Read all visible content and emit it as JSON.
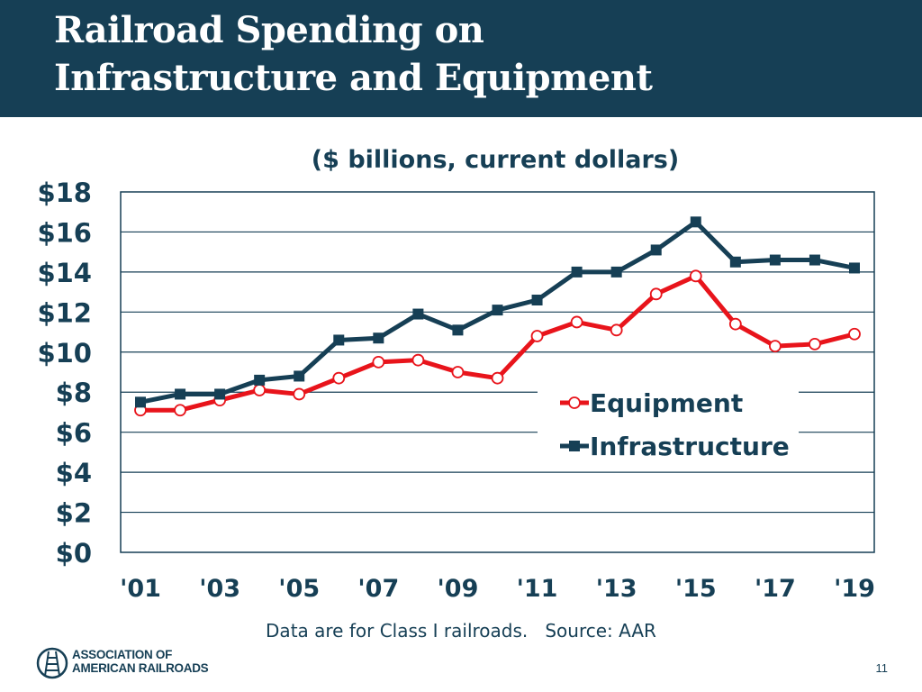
{
  "slide": {
    "title_line1": "Railroad Spending on",
    "title_line2": "Infrastructure and Equipment",
    "footnote": "Data are for Class I railroads.   Source: AAR",
    "page_number": "11",
    "logo": {
      "line1": "ASSOCIATION OF",
      "line2": "AMERICAN RAILROADS",
      "icon": "railroad-track-icon"
    }
  },
  "colors": {
    "header": "#163f55",
    "equipment": "#e8141b",
    "infrastructure": "#163f55"
  },
  "chart_data": {
    "type": "line",
    "subtitle": "($ billions, current dollars)",
    "x": [
      2001,
      2002,
      2003,
      2004,
      2005,
      2006,
      2007,
      2008,
      2009,
      2010,
      2011,
      2012,
      2013,
      2014,
      2015,
      2016,
      2017,
      2018,
      2019
    ],
    "ylim": [
      0,
      18
    ],
    "y_ticks": [
      0,
      2,
      4,
      6,
      8,
      10,
      12,
      14,
      16,
      18
    ],
    "y_tick_labels": [
      "$0",
      "$2",
      "$4",
      "$6",
      "$8",
      "$10",
      "$12",
      "$14",
      "$16",
      "$18"
    ],
    "x_ticks": [
      2001,
      2003,
      2005,
      2007,
      2009,
      2011,
      2013,
      2015,
      2017,
      2019
    ],
    "x_tick_labels": [
      "'01",
      "'03",
      "'05",
      "'07",
      "'09",
      "'11",
      "'13",
      "'15",
      "'17",
      "'19"
    ],
    "grid": true,
    "legend_position": "center-right",
    "series": [
      {
        "name": "Equipment",
        "marker": "circle",
        "values": [
          7.1,
          7.1,
          7.6,
          8.1,
          7.9,
          8.7,
          9.5,
          9.6,
          9.0,
          8.7,
          10.8,
          11.5,
          11.1,
          12.9,
          13.8,
          11.4,
          10.3,
          10.4,
          10.9
        ]
      },
      {
        "name": "Infrastructure",
        "marker": "square",
        "values": [
          7.5,
          7.9,
          7.9,
          8.6,
          8.8,
          10.6,
          10.7,
          11.9,
          11.1,
          12.1,
          12.6,
          14.0,
          14.0,
          15.1,
          16.5,
          14.5,
          14.6,
          14.6,
          14.2
        ]
      }
    ]
  }
}
